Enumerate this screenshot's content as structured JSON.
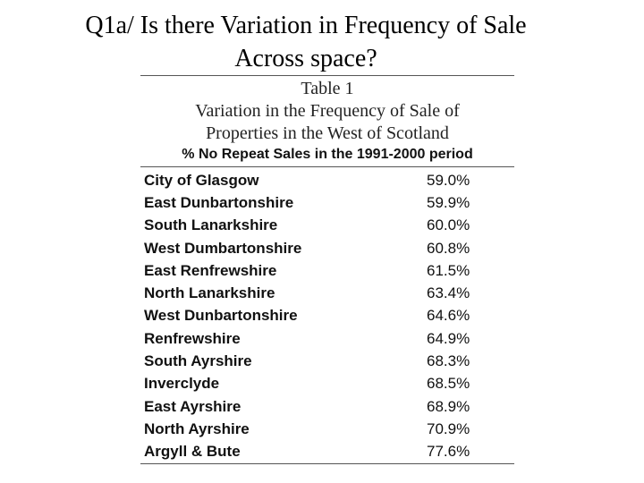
{
  "slide": {
    "title_line1": "Q1a/ Is there Variation in Frequency of Sale",
    "title_line2": "Across space?"
  },
  "table": {
    "caption_line1": "Table 1",
    "caption_line2": "Variation in the Frequency of Sale of",
    "caption_line3": "Properties in the West of Scotland",
    "column_header": "% No Repeat Sales in the 1991-2000 period",
    "rows": [
      {
        "region": "City of Glasgow",
        "value": "59.0%"
      },
      {
        "region": "East Dunbartonshire",
        "value": "59.9%"
      },
      {
        "region": "South Lanarkshire",
        "value": "60.0%"
      },
      {
        "region": "West Dumbartonshire",
        "value": "60.8%"
      },
      {
        "region": "East Renfrewshire",
        "value": "61.5%"
      },
      {
        "region": "North Lanarkshire",
        "value": "63.4%"
      },
      {
        "region": "West Dunbartonshire",
        "value": "64.6%"
      },
      {
        "region": "Renfrewshire",
        "value": "64.9%"
      },
      {
        "region": "South Ayrshire",
        "value": "68.3%"
      },
      {
        "region": "Inverclyde",
        "value": "68.5%"
      },
      {
        "region": "East Ayrshire",
        "value": "68.9%"
      },
      {
        "region": "North Ayrshire",
        "value": "70.9%"
      },
      {
        "region": "Argyll & Bute",
        "value": "77.6%"
      }
    ]
  }
}
